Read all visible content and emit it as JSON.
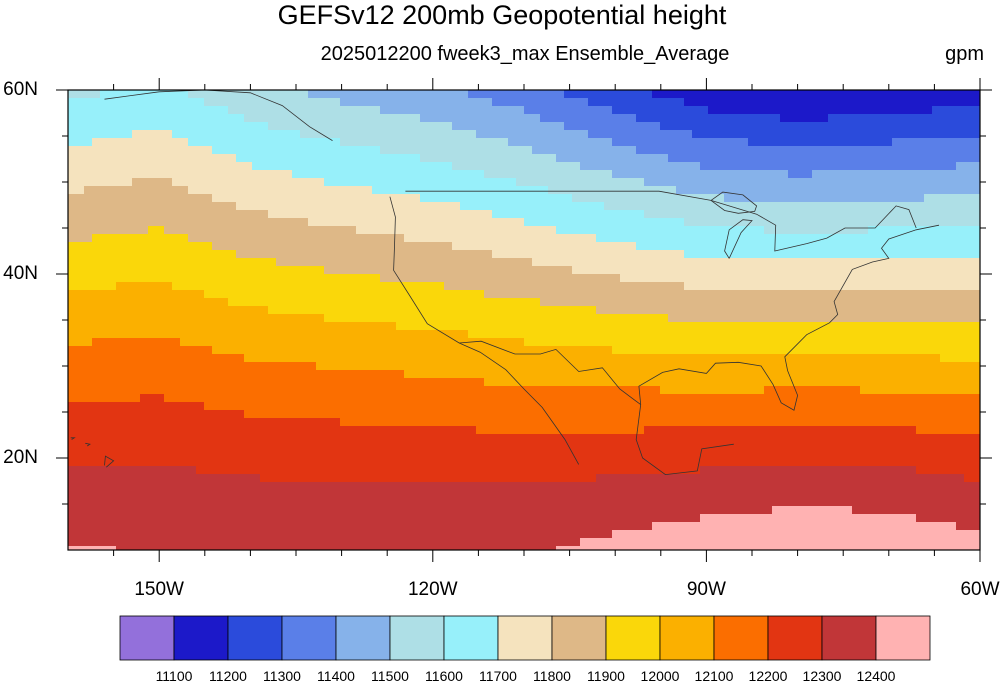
{
  "chart_data": {
    "type": "filled-contour-map",
    "title": "GEFSv12 200mb Geopotential height",
    "subtitle": "2025012200 fweek3_max Ensemble_Average",
    "units": "gpm",
    "lon_range": [
      -160,
      -60
    ],
    "lat_range": [
      10,
      60
    ],
    "x_ticks": [
      {
        "lon": -150,
        "label": "150W"
      },
      {
        "lon": -120,
        "label": "120W"
      },
      {
        "lon": -90,
        "label": "90W"
      },
      {
        "lon": -60,
        "label": "60W"
      }
    ],
    "y_ticks": [
      {
        "lat": 60,
        "label": "60N"
      },
      {
        "lat": 40,
        "label": "40N"
      },
      {
        "lat": 20,
        "label": "20N"
      }
    ],
    "levels": [
      11100,
      11200,
      11300,
      11400,
      11500,
      11600,
      11700,
      11800,
      11900,
      12000,
      12100,
      12200,
      12300,
      12400
    ],
    "level_labels": [
      "11100",
      "11200",
      "11300",
      "11400",
      "11500",
      "11600",
      "11700",
      "11800",
      "11900",
      "12000",
      "12100",
      "12200",
      "12300",
      "12400"
    ],
    "colors": [
      "#9370DB",
      "#1C19C9",
      "#2B4BDB",
      "#5A7FE8",
      "#86B2EA",
      "#AEDFE6",
      "#97F0FA",
      "#F5E3BE",
      "#DEB887",
      "#FAD70A",
      "#FBB000",
      "#FB6E00",
      "#E23512",
      "#C13638",
      "#FFB2B2"
    ],
    "land_color": "#D9D9D9",
    "grid": false,
    "colorbar_position": "bottom"
  }
}
